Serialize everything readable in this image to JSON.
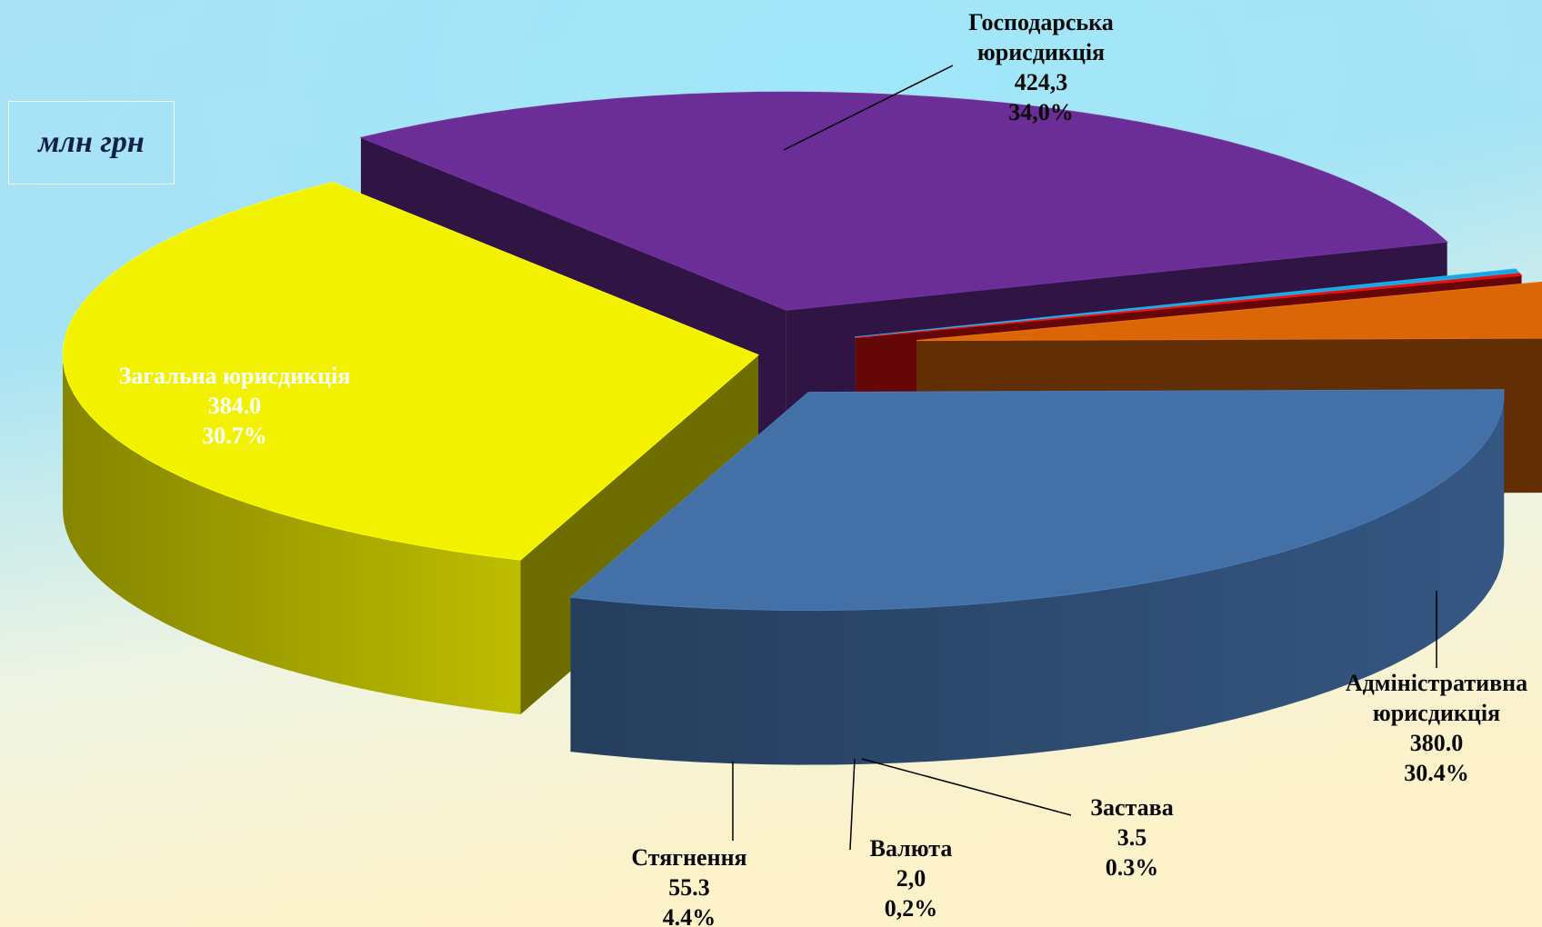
{
  "unit_label": "млн грн",
  "chart_data": {
    "type": "pie",
    "style": "3d-exploded",
    "unit": "млн грн",
    "slices": [
      {
        "label": [
          "Господарська",
          "юрисдикція"
        ],
        "value": 424.3,
        "value_text": "424,3",
        "percent_text": "34,0%",
        "color": "#F2F200"
      },
      {
        "label": [
          "Адміністративна",
          "юрисдикція"
        ],
        "value": 380.0,
        "value_text": "380.0",
        "percent_text": "30.4%",
        "color": "#6A2E96"
      },
      {
        "label": [
          "Застава"
        ],
        "value": 3.5,
        "value_text": "3.5",
        "percent_text": "0.3%",
        "color": "#1AA6DF"
      },
      {
        "label": [
          "Валюта"
        ],
        "value": 2.0,
        "value_text": "2,0",
        "percent_text": "0,2%",
        "color": "#E01010"
      },
      {
        "label": [
          "Стягнення"
        ],
        "value": 55.3,
        "value_text": "55.3",
        "percent_text": "4.4%",
        "color": "#DA6608"
      },
      {
        "label": [
          "Загальна юрисдикція"
        ],
        "value": 384.0,
        "value_text": "384.0",
        "percent_text": "30.7%",
        "color": "#4470A8"
      }
    ]
  }
}
